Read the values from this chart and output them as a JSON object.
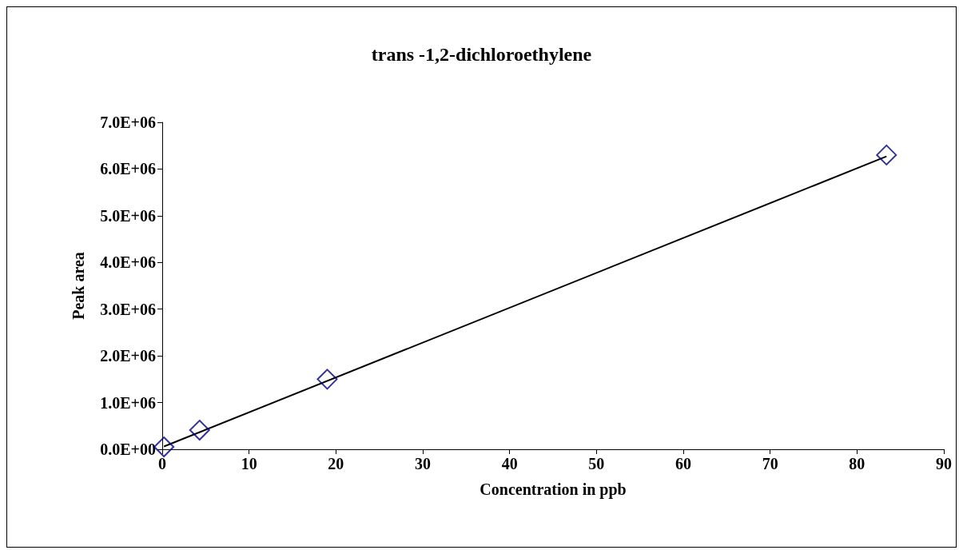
{
  "chart_data": {
    "type": "scatter",
    "title": "trans -1,2-dichloroethylene",
    "xlabel": "Concentration in ppb",
    "ylabel": "Peak area",
    "xlim": [
      0,
      90
    ],
    "xticks": [
      0,
      10,
      20,
      30,
      40,
      50,
      60,
      70,
      80,
      90
    ],
    "ylim": [
      0,
      7000000
    ],
    "yticks": [
      {
        "value": 0,
        "label": "0.0E+00"
      },
      {
        "value": 1000000,
        "label": "1.0E+06"
      },
      {
        "value": 2000000,
        "label": "2.0E+06"
      },
      {
        "value": 3000000,
        "label": "3.0E+06"
      },
      {
        "value": 4000000,
        "label": "4.0E+06"
      },
      {
        "value": 5000000,
        "label": "5.0E+06"
      },
      {
        "value": 6000000,
        "label": "6.0E+06"
      },
      {
        "value": 7000000,
        "label": "7.0E+06"
      }
    ],
    "grid": false,
    "marker": "diamond",
    "series": [
      {
        "color": "#000080",
        "x": [
          0.2,
          4.3,
          19.0,
          83.4
        ],
        "values": [
          50000,
          410000,
          1500000,
          6300000
        ]
      },
      {
        "type": "line",
        "color": "#000000",
        "marker": "none",
        "x": [
          0.2,
          83.4
        ],
        "values": [
          60000,
          6270000
        ]
      }
    ]
  }
}
